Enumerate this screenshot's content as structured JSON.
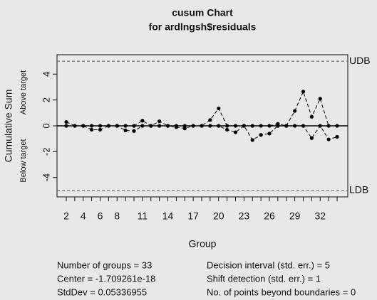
{
  "chart_data": {
    "type": "cusum",
    "title": "cusum Chart",
    "subtitle": "for ardlngsh$residuals",
    "x_label": "Group",
    "y_label": "Cumulative Sum",
    "y_label_above": "Above target",
    "y_label_below": "Below target",
    "categories": [
      "2",
      null,
      "4",
      null,
      "6",
      null,
      "8",
      null,
      null,
      "11",
      null,
      null,
      "14",
      null,
      null,
      "17",
      null,
      null,
      "20",
      null,
      null,
      "23",
      null,
      null,
      "26",
      null,
      null,
      "29",
      null,
      null,
      "32",
      null,
      null
    ],
    "series": [
      {
        "name": "Above target",
        "color": "#000000",
        "values": [
          0.3,
          0,
          0,
          0,
          0,
          0,
          0,
          0,
          0,
          0.4,
          0,
          0.35,
          0,
          0,
          0,
          0,
          0,
          0.45,
          1.35,
          0,
          0,
          0,
          0,
          0,
          0,
          0.15,
          0,
          1.15,
          2.65,
          0.7,
          2.1,
          0,
          0
        ]
      },
      {
        "name": "Below target",
        "color": "#000000",
        "values": [
          0,
          0,
          0,
          -0.3,
          -0.3,
          0,
          0,
          -0.35,
          -0.4,
          0,
          0,
          0,
          0,
          -0.1,
          -0.2,
          0,
          0,
          0,
          0,
          -0.3,
          -0.5,
          0,
          -1.1,
          -0.7,
          -0.6,
          0,
          0,
          0,
          0,
          -0.95,
          0,
          -1.05,
          -0.85
        ]
      }
    ],
    "ylim": [
      -5.5,
      5.5
    ],
    "yticks": [
      -4,
      -2,
      0,
      2,
      4
    ],
    "center": 0,
    "limits": [
      {
        "label": "UDB",
        "value": 5
      },
      {
        "label": "LDB",
        "value": -5
      }
    ],
    "stats": [
      "Number of groups = 33",
      "Center = -1.709261e-18",
      "StdDev = 0.05336955",
      "Decision interval (std. err.) = 5",
      "Shift detection (std. err.) = 1",
      "No. of points beyond boundaries = 0"
    ]
  }
}
